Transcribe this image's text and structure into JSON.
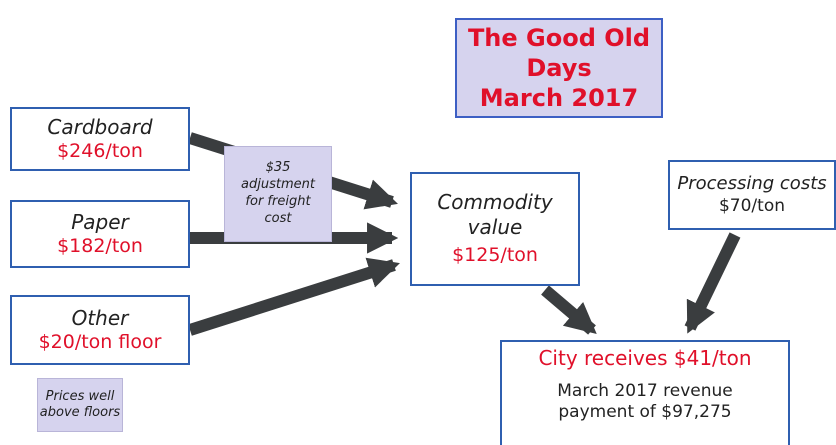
{
  "title": {
    "lines": [
      "The Good Old Days",
      "March 2017"
    ]
  },
  "nodes": [
    {
      "label": "Cardboard",
      "price": "$246/ton"
    },
    {
      "label": "Paper",
      "price": "$182/ton"
    },
    {
      "label": "Other",
      "price": "$20/ton floor"
    }
  ],
  "freight_note": {
    "lines": [
      "$35",
      "adjustment",
      "for freight",
      "cost"
    ]
  },
  "floor_note": {
    "lines": [
      "Prices well",
      "above floors"
    ]
  },
  "commodity": {
    "lines": [
      "Commodity",
      "value"
    ],
    "price": "$125/ton"
  },
  "processing": {
    "label": "Processing costs",
    "price": "$70/ton"
  },
  "result": {
    "headline": "City receives $41/ton",
    "lines": [
      "March 2017 revenue",
      "payment of $97,275"
    ]
  }
}
